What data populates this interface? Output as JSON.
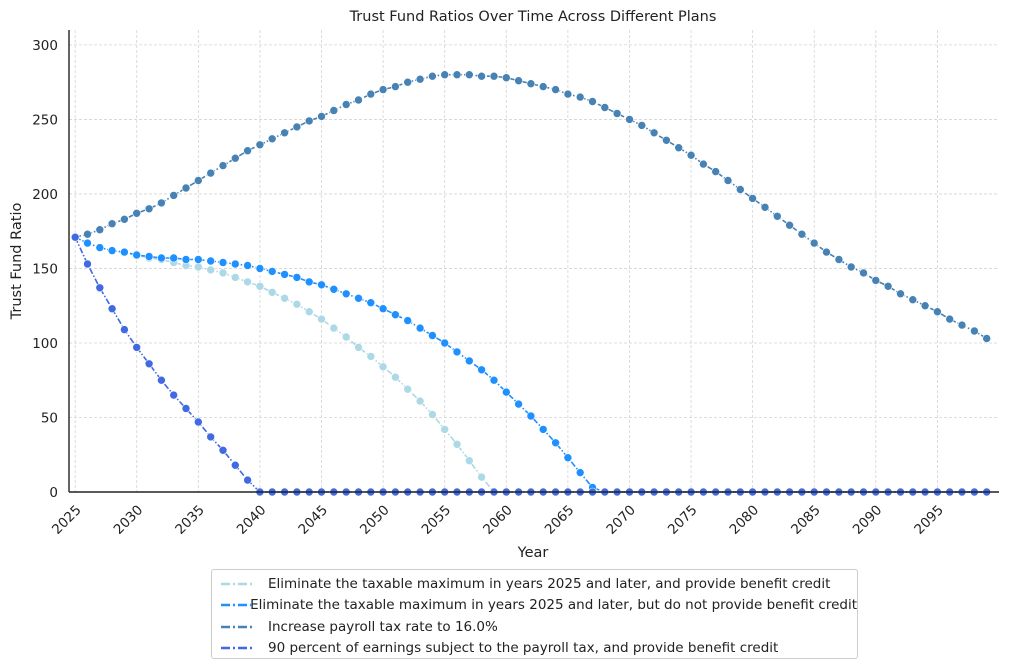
{
  "chart_data": {
    "type": "line",
    "title": "Trust Fund Ratios Over Time Across Different Plans",
    "xlabel": "Year",
    "ylabel": "Trust Fund Ratio",
    "xlim": [
      2024.5,
      2100
    ],
    "ylim": [
      0,
      310
    ],
    "x_ticks": [
      2025,
      2030,
      2035,
      2040,
      2045,
      2050,
      2055,
      2060,
      2065,
      2070,
      2075,
      2080,
      2085,
      2090,
      2095
    ],
    "y_ticks": [
      0,
      50,
      100,
      150,
      200,
      250,
      300
    ],
    "grid": true,
    "legend_position": "bottom-center-outside",
    "series": [
      {
        "name": "Eliminate the taxable maximum in years 2025 and later, and provide benefit credit",
        "color": "#add8e6",
        "x_start": 2025,
        "values": [
          171,
          167,
          164,
          162,
          161,
          159,
          157,
          156,
          154,
          152,
          151,
          149,
          147,
          144,
          141,
          138,
          134,
          130,
          126,
          121,
          116,
          110,
          104,
          97,
          91,
          84,
          77,
          69,
          61,
          52,
          42,
          32,
          21,
          10,
          0,
          0,
          0,
          0,
          0,
          0,
          0,
          0,
          0,
          0,
          0,
          0,
          0,
          0,
          0,
          0,
          0,
          0,
          0,
          0,
          0,
          0,
          0,
          0,
          0,
          0,
          0,
          0,
          0,
          0,
          0,
          0,
          0,
          0,
          0,
          0,
          0,
          0,
          0,
          0,
          0
        ]
      },
      {
        "name": "Eliminate the taxable maximum in years 2025 and later, but do not provide benefit credit",
        "color": "#1e90ff",
        "x_start": 2025,
        "values": [
          171,
          167,
          164,
          162,
          161,
          159,
          158,
          157,
          157,
          156,
          156,
          155,
          154,
          153,
          152,
          150,
          148,
          146,
          144,
          141,
          139,
          136,
          133,
          130,
          127,
          123,
          119,
          115,
          110,
          105,
          100,
          94,
          88,
          82,
          75,
          67,
          59,
          51,
          42,
          33,
          23,
          13,
          3,
          0,
          0,
          0,
          0,
          0,
          0,
          0,
          0,
          0,
          0,
          0,
          0,
          0,
          0,
          0,
          0,
          0,
          0,
          0,
          0,
          0,
          0,
          0,
          0,
          0,
          0,
          0,
          0,
          0,
          0,
          0,
          0
        ]
      },
      {
        "name": "Increase payroll tax rate to 16.0%",
        "color": "#4682b4",
        "x_start": 2025,
        "values": [
          171,
          173,
          176,
          180,
          183,
          187,
          190,
          194,
          199,
          204,
          209,
          214,
          219,
          224,
          229,
          233,
          237,
          241,
          245,
          249,
          252,
          256,
          260,
          263,
          267,
          270,
          272,
          275,
          277,
          279,
          280,
          280,
          280,
          279,
          279,
          278,
          276,
          274,
          272,
          270,
          267,
          265,
          262,
          258,
          254,
          250,
          246,
          241,
          236,
          231,
          226,
          220,
          215,
          209,
          203,
          197,
          191,
          185,
          179,
          173,
          167,
          161,
          156,
          151,
          147,
          142,
          138,
          133,
          129,
          125,
          121,
          116,
          112,
          108,
          103
        ]
      },
      {
        "name": "90 percent of earnings subject to the payroll tax, and provide benefit credit",
        "color": "#4169e1",
        "x_start": 2025,
        "values": [
          171,
          153,
          137,
          123,
          109,
          97,
          86,
          75,
          65,
          56,
          47,
          37,
          28,
          18,
          8,
          0,
          0,
          0,
          0,
          0,
          0,
          0,
          0,
          0,
          0,
          0,
          0,
          0,
          0,
          0,
          0,
          0,
          0,
          0,
          0,
          0,
          0,
          0,
          0,
          0,
          0,
          0,
          0,
          0,
          0,
          0,
          0,
          0,
          0,
          0,
          0,
          0,
          0,
          0,
          0,
          0,
          0,
          0,
          0,
          0,
          0,
          0,
          0,
          0,
          0,
          0,
          0,
          0,
          0,
          0,
          0,
          0,
          0,
          0,
          0
        ]
      }
    ]
  }
}
